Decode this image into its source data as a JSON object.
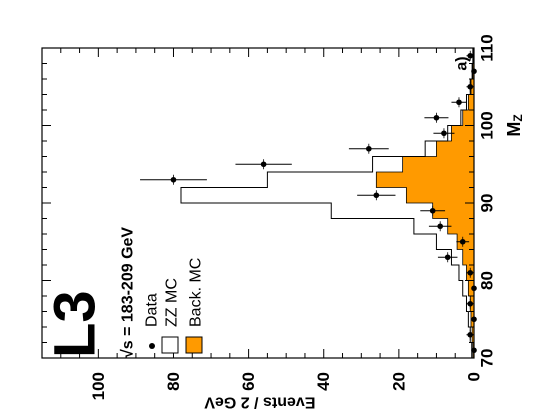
{
  "chart_data": {
    "type": "bar",
    "orientation": "rotated-90-ccw",
    "experiment": "L3",
    "energy_label": "√s = 183-209 GeV",
    "panel_label": "a)",
    "xlabel": "M",
    "xlabel_sub": "Z",
    "ylabel": "Events / 2 GeV",
    "xlim": [
      70,
      110
    ],
    "ylim": [
      0,
      115
    ],
    "x_ticks": [
      "70",
      "80",
      "90",
      "100",
      "110"
    ],
    "y_ticks": [
      "0",
      "20",
      "40",
      "60",
      "80",
      "100"
    ],
    "grid": false,
    "legend_position": "top-left",
    "legend": [
      {
        "label": "Data",
        "marker": "point"
      },
      {
        "label": "ZZ MC",
        "marker": "open-box"
      },
      {
        "label": "Back. MC",
        "marker": "filled-box"
      }
    ],
    "colors": {
      "background_mc": "#ff9a00",
      "zz_mc_line": "#000000",
      "data": "#000000"
    },
    "bin_edges": [
      70,
      72,
      74,
      76,
      78,
      80,
      82,
      84,
      86,
      88,
      90,
      92,
      94,
      96,
      98,
      100,
      102,
      104,
      106,
      108,
      110
    ],
    "series": [
      {
        "name": "Back. MC",
        "style": "filled-histogram",
        "values": [
          0.3,
          0.5,
          0.8,
          1.0,
          1.5,
          2.0,
          3.0,
          4.5,
          7.0,
          11.0,
          18.0,
          26.0,
          19.0,
          10.0,
          6.0,
          3.0,
          1.5,
          0.8,
          0.3,
          0.2
        ]
      },
      {
        "name": "ZZ MC",
        "style": "open-histogram-total",
        "values": [
          0.6,
          1.0,
          1.5,
          2.0,
          3.0,
          4.0,
          6.0,
          10.0,
          16.0,
          38.0,
          78.0,
          55.0,
          27.0,
          13.0,
          7.0,
          3.5,
          2.0,
          1.0,
          0.5,
          0.3
        ]
      },
      {
        "name": "Data",
        "style": "points-with-errors",
        "x": [
          71,
          73,
          75,
          77,
          79,
          81,
          83,
          85,
          87,
          89,
          91,
          93,
          95,
          97,
          99,
          101,
          103,
          105,
          107,
          109
        ],
        "values": [
          0,
          1,
          0,
          1,
          0,
          1,
          7,
          3,
          9,
          11,
          26,
          80,
          56,
          28,
          8,
          10,
          4,
          1,
          0,
          1
        ],
        "yerr": [
          0,
          1,
          0,
          1,
          0,
          1,
          2.6,
          1.7,
          3,
          3.3,
          5.1,
          8.9,
          7.5,
          5.3,
          2.8,
          3.2,
          2,
          1,
          0,
          1
        ]
      }
    ]
  }
}
